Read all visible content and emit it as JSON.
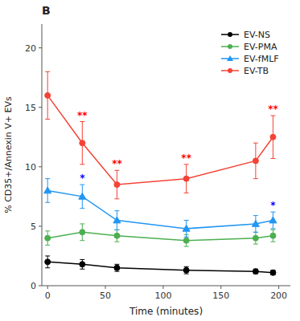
{
  "chart_data": {
    "type": "line",
    "title": "B",
    "x_label": "Time (minutes)",
    "y_label": "% CD35+/Annexin V+ EVs",
    "x": [
      0,
      30,
      60,
      120,
      180,
      195
    ],
    "series": [
      {
        "name": "EV-NS",
        "color": "#000000",
        "marker": "circle",
        "values": [
          2.0,
          1.8,
          1.5,
          1.3,
          1.2,
          1.1
        ],
        "yerr": [
          0.5,
          0.4,
          0.3,
          0.3,
          0.2,
          0.2
        ]
      },
      {
        "name": "EV-PMA",
        "color": "#4caf50",
        "marker": "circle",
        "values": [
          4.0,
          4.5,
          4.2,
          3.8,
          4.0,
          4.2
        ],
        "yerr": [
          0.6,
          0.7,
          0.5,
          0.5,
          0.5,
          0.5
        ]
      },
      {
        "name": "EV-fMLF",
        "color": "#2196f3",
        "marker": "triangle",
        "values": [
          8.0,
          7.5,
          5.5,
          4.8,
          5.2,
          5.5
        ],
        "yerr": [
          1.0,
          1.0,
          0.8,
          0.7,
          0.7,
          0.7
        ]
      },
      {
        "name": "EV-TB",
        "color": "#f44336",
        "marker": "circle",
        "values": [
          16.0,
          12.0,
          8.5,
          9.0,
          10.5,
          12.5
        ],
        "yerr": [
          2.0,
          1.8,
          1.2,
          1.2,
          1.5,
          1.8
        ]
      }
    ],
    "annotations": [
      {
        "text": "**",
        "series": "EV-TB",
        "x": 30,
        "color": "red"
      },
      {
        "text": "**",
        "series": "EV-TB",
        "x": 60,
        "color": "red"
      },
      {
        "text": "**",
        "series": "EV-TB",
        "x": 120,
        "color": "red"
      },
      {
        "text": "**",
        "series": "EV-TB",
        "x": 195,
        "color": "red"
      },
      {
        "text": "*",
        "series": "EV-fMLF",
        "x": 30,
        "color": "blue"
      },
      {
        "text": "*",
        "series": "EV-fMLF",
        "x": 195,
        "color": "blue"
      }
    ],
    "xlim": [
      -5,
      210
    ],
    "ylim": [
      0,
      22
    ],
    "xticks": [
      0,
      50,
      100,
      150,
      200
    ],
    "yticks": [
      0,
      5,
      10,
      15,
      20
    ],
    "grid": false,
    "legend": "upper right"
  }
}
